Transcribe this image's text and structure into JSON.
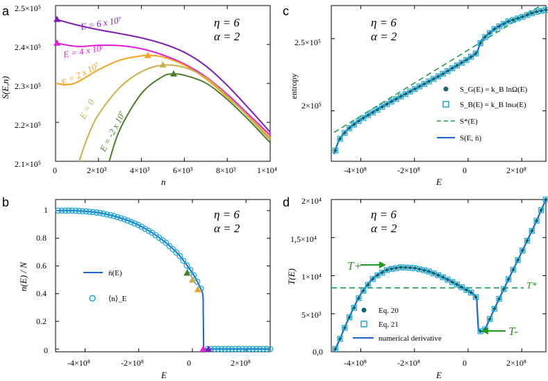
{
  "panel_labels": [
    "a",
    "b",
    "c",
    "d"
  ],
  "params": {
    "eta": "η = 6",
    "alpha": "α = 2"
  },
  "colors": {
    "blue": "#1a66c9",
    "cyan": "#1aa7d6",
    "green_dash": "#1f9e4a",
    "t_green": "#229922",
    "purple": "#7d1fb0",
    "magenta": "#e21fd6",
    "orange": "#f5a21d",
    "tan": "#c9b048",
    "dkgreen": "#4a7e2a"
  },
  "chart_data": [
    {
      "panel": "a",
      "type": "line",
      "title": "",
      "xlabel": "n",
      "ylabel": "S(E,n)",
      "xlim": [
        0,
        10000
      ],
      "ylim": [
        210000,
        250000
      ],
      "x_ticks": [
        "0",
        "2×10³",
        "4×10³",
        "6×10³",
        "8×10³",
        "1×10⁴"
      ],
      "y_ticks": [
        "2.1×10⁵",
        "2.2×10⁵",
        "2.3×10⁵",
        "2.4×10⁵",
        "2.5×10⁵"
      ],
      "series": [
        {
          "name": "E = 6 x 10⁷",
          "color": "#7d1fb0",
          "x": [
            0,
            1000,
            2000,
            3000,
            4000,
            5000,
            6000,
            7000,
            8000,
            9000,
            10000
          ],
          "values": [
            246500,
            245000,
            243800,
            242800,
            241700,
            240200,
            238000,
            234500,
            229500,
            223600,
            217500
          ],
          "max_marker": [
            0,
            246500
          ]
        },
        {
          "name": "E = 4 x 10⁷",
          "color": "#e21fd6",
          "x": [
            0,
            1000,
            2000,
            3000,
            4000,
            5000,
            6000,
            7000,
            8000,
            9000,
            10000
          ],
          "values": [
            240400,
            239500,
            239800,
            239700,
            238900,
            237300,
            235000,
            231700,
            227200,
            222000,
            216700
          ],
          "max_marker": [
            0,
            240400
          ]
        },
        {
          "name": "E = 2 x 10⁷",
          "color": "#f5a21d",
          "x": [
            0,
            500,
            1000,
            2000,
            3000,
            4000,
            4300,
            5000,
            6000,
            7000,
            8000,
            9000,
            10000
          ],
          "values": [
            230000,
            229700,
            230300,
            233500,
            236000,
            237100,
            237200,
            236800,
            234700,
            231200,
            226500,
            221500,
            216000
          ],
          "max_marker": [
            4300,
            237200
          ]
        },
        {
          "name": "E = 0",
          "color": "#c9b048",
          "x": [
            1100,
            1500,
            2000,
            3000,
            4000,
            5000,
            6000,
            7000,
            8000,
            9000,
            10000
          ],
          "values": [
            210000,
            216300,
            222000,
            229000,
            233000,
            234700,
            234100,
            231500,
            226800,
            221300,
            215500
          ],
          "max_marker": [
            5000,
            234800
          ]
        },
        {
          "name": "E = -2 x 10⁷",
          "color": "#4a7e2a",
          "x": [
            2500,
            3000,
            4000,
            5000,
            5500,
            6000,
            7000,
            8000,
            9000,
            10000
          ],
          "values": [
            210000,
            218200,
            227400,
            231800,
            232400,
            232100,
            230100,
            225900,
            220600,
            214800
          ],
          "max_marker": [
            5500,
            232500
          ]
        }
      ]
    },
    {
      "panel": "b",
      "type": "line",
      "title": "",
      "xlabel": "E",
      "ylabel": "n(E) / N",
      "xlim": [
        -510000000,
        290000000
      ],
      "ylim": [
        0,
        1.1
      ],
      "x_ticks": [
        "-4×10⁸",
        "-2×10⁸",
        "0",
        "2×10⁸"
      ],
      "y_ticks": [
        "0",
        "0.2",
        "0.4",
        "0.6",
        "0.8",
        "1"
      ],
      "series": [
        {
          "name": "n̄(E)",
          "color": "#1a66c9",
          "E": [
            -500000000,
            -450000000,
            -400000000,
            -350000000,
            -300000000,
            -250000000,
            -200000000,
            -150000000,
            -100000000,
            -50000000,
            0,
            20000000,
            35000000,
            38000000,
            40000000,
            42000000,
            100000000,
            200000000,
            290000000
          ],
          "values": [
            1.0,
            1.0,
            0.995,
            0.985,
            0.965,
            0.935,
            0.895,
            0.84,
            0.77,
            0.68,
            0.55,
            0.48,
            0.42,
            0.4,
            0.37,
            0.0,
            0.0,
            0.0,
            0.0
          ]
        },
        {
          "name": "⟨n⟩_E",
          "color": "#1aa7d6",
          "marker": "circle",
          "E_range": [
            -500000000,
            290000000
          ],
          "count": 62
        }
      ],
      "markers": [
        {
          "E": -20000000,
          "value": 0.55,
          "color": "#4a7e2a"
        },
        {
          "E": 0,
          "value": 0.5,
          "color": "#c9b048"
        },
        {
          "E": 20000000,
          "value": 0.43,
          "color": "#f5a21d"
        },
        {
          "E": 40000000,
          "value": 0.0,
          "color": "#e21fd6"
        },
        {
          "E": 60000000,
          "value": 0.0,
          "color": "#7d1fb0"
        }
      ]
    },
    {
      "panel": "c",
      "type": "line",
      "title": "",
      "xlabel": "E",
      "ylabel": "entropy",
      "xlim": [
        -510000000,
        290000000
      ],
      "ylim": [
        165000,
        273000
      ],
      "x_ticks": [
        "-4×10⁸",
        "-2×10⁸",
        "0",
        "2×10⁸"
      ],
      "y_ticks": [
        "2×10⁵",
        "2.5×10⁵"
      ],
      "series": [
        {
          "name": "S_G(E) = k_B lnΩ(E)",
          "color": "#14666e",
          "marker": "dot"
        },
        {
          "name": "S_B(E) = k_B lnω(E)",
          "color": "#1aa7d6",
          "marker": "square"
        },
        {
          "name": "S*(E)",
          "color": "#1f9e4a",
          "dashed": true,
          "E": [
            -500000000,
            270000000
          ],
          "values": [
            185000,
            273000
          ]
        },
        {
          "name": "S(E, n̄)",
          "color": "#1a66c9",
          "E": [
            -500000000,
            -480000000,
            -450000000,
            -400000000,
            -300000000,
            -200000000,
            -100000000,
            0,
            30000000,
            40000000,
            50000000,
            100000000,
            150000000,
            200000000,
            250000000,
            290000000
          ],
          "values": [
            170000,
            180000,
            187000,
            194000,
            205000,
            215000,
            225000,
            236000,
            240000,
            244000,
            249000,
            257000,
            262000,
            265000,
            268500,
            270000
          ]
        }
      ]
    },
    {
      "panel": "d",
      "type": "line",
      "title": "",
      "xlabel": "E",
      "ylabel": "T(E)",
      "xlim": [
        -510000000,
        290000000
      ],
      "ylim": [
        0,
        20000
      ],
      "x_ticks": [
        "-4×10⁸",
        "-2×10⁸",
        "0",
        "2×10⁸"
      ],
      "y_ticks": [
        "0,0",
        "5×10³",
        "1×10⁴",
        "1,5×10⁴",
        "2×10⁴"
      ],
      "series": [
        {
          "name": "Eq. 20",
          "color": "#14666e",
          "marker": "dot"
        },
        {
          "name": "Eq. 21",
          "color": "#1aa7d6",
          "marker": "square"
        },
        {
          "name": "numerical derivative",
          "color": "#1a66c9",
          "E": [
            -500000000,
            -480000000,
            -450000000,
            -400000000,
            -350000000,
            -300000000,
            -250000000,
            -200000000,
            -150000000,
            -100000000,
            -50000000,
            -10000000,
            20000000,
            32000000,
            38000000,
            45000000,
            60000000,
            100000000,
            150000000,
            200000000,
            250000000,
            290000000
          ],
          "values": [
            0,
            1500,
            4000,
            7600,
            9800,
            10800,
            11100,
            11000,
            10600,
            9900,
            9000,
            8200,
            7600,
            7000,
            3000,
            2700,
            2700,
            5800,
            9500,
            13100,
            16800,
            20000
          ]
        },
        {
          "name": "T*",
          "color": "#1f9e4a",
          "dashed": true,
          "value": 8400
        }
      ],
      "annotations": [
        "T₊",
        "T₋",
        "T*"
      ]
    }
  ],
  "labels": {
    "a_curves": [
      "E = 6 x 10⁷",
      "E = 4 x 10⁷",
      "E = 2 x 10⁷",
      "E = 0",
      "E = -2 x 10⁷"
    ],
    "b_legend": [
      "n̄(E)",
      "⟨n⟩_E"
    ],
    "c_legend": [
      "S_G(E) = k_B lnΩ(E)",
      "S_B(E) = k_B lnω(E)",
      "S*(E)",
      "S(E, n̄)"
    ],
    "d_legend": [
      "Eq. 20",
      "Eq. 21",
      "numerical derivative"
    ],
    "d_annot": {
      "tplus": "T+",
      "tminus": "T-",
      "tstar": "T*"
    }
  }
}
